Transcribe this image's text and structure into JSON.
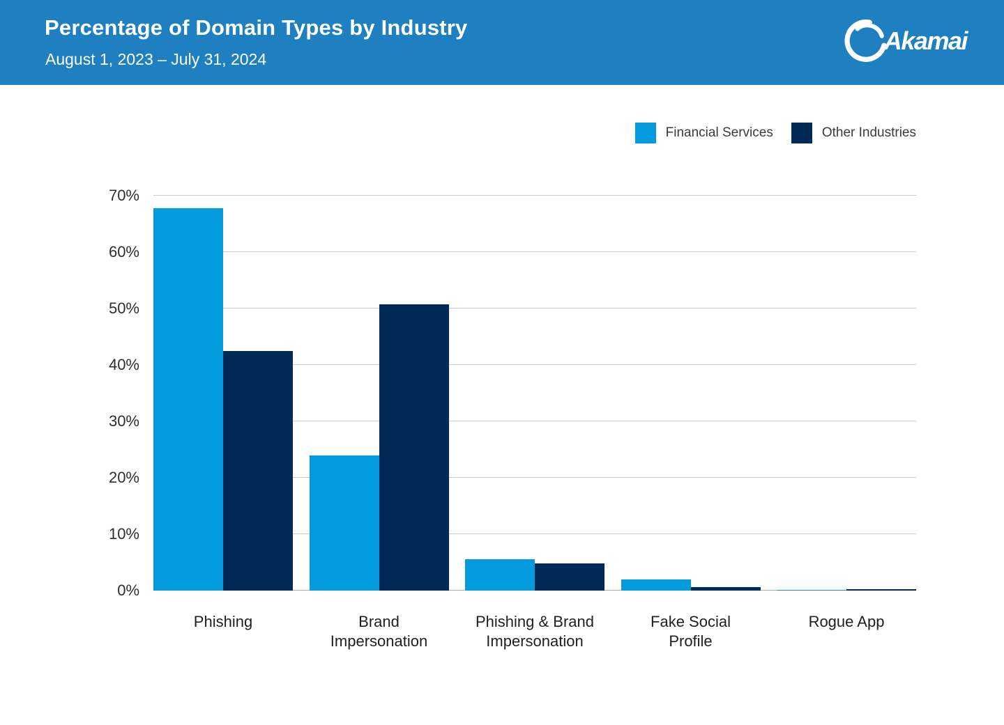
{
  "header": {
    "title": "Percentage of Domain Types by Industry",
    "subtitle": "August 1, 2023 – July 31, 2024",
    "background_color": "#1E80C1",
    "logo_text": "Akamai"
  },
  "chart_data": {
    "type": "bar",
    "title": "Percentage of Domain Types by Industry",
    "subtitle": "August 1, 2023 – July 31, 2024",
    "categories": [
      "Phishing",
      "Brand\nImpersonation",
      "Phishing & Brand\nImpersonation",
      "Fake Social\nProfile",
      "Rogue App"
    ],
    "series": [
      {
        "name": "Financial Services",
        "color": "#049ADE",
        "values": [
          67.8,
          24.0,
          5.6,
          2.0,
          0.1
        ]
      },
      {
        "name": "Other Industries",
        "color": "#002A56",
        "values": [
          42.5,
          50.8,
          4.8,
          0.6,
          0.2
        ]
      }
    ],
    "xlabel": "",
    "ylabel": "",
    "ylim": [
      0,
      70
    ],
    "yticks": [
      0,
      10,
      20,
      30,
      40,
      50,
      60,
      70
    ],
    "ytick_suffix": "%",
    "grid": true,
    "gridline_color": "#CBCBCB",
    "legend_position": "top-right"
  }
}
